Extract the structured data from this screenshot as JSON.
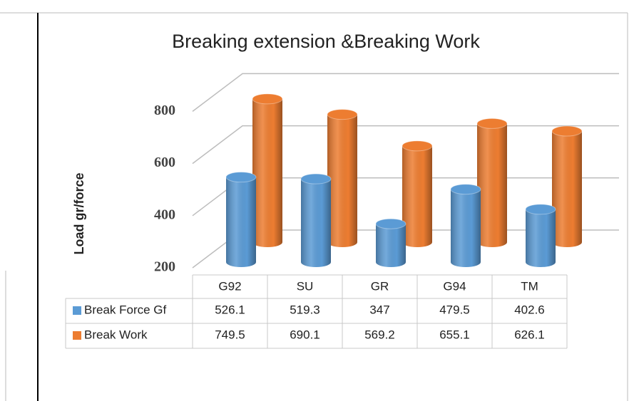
{
  "chart_data": {
    "type": "bar3d",
    "title": "Breaking extension &Breaking Work",
    "y_label": "Load gr/force",
    "categories": [
      "G92",
      "SU",
      "GR",
      "G94",
      "TM"
    ],
    "series": [
      {
        "name": "Break Force Gf",
        "color": "#5b9bd5",
        "values": [
          526.1,
          519.3,
          347,
          479.5,
          402.6
        ]
      },
      {
        "name": "Break Work",
        "color": "#ed7d31",
        "values": [
          749.5,
          690.1,
          569.2,
          655.1,
          626.1
        ]
      }
    ],
    "ylim": [
      200,
      800
    ],
    "yticks": [
      200,
      400,
      600,
      800
    ],
    "grid": true,
    "data_table": true
  }
}
